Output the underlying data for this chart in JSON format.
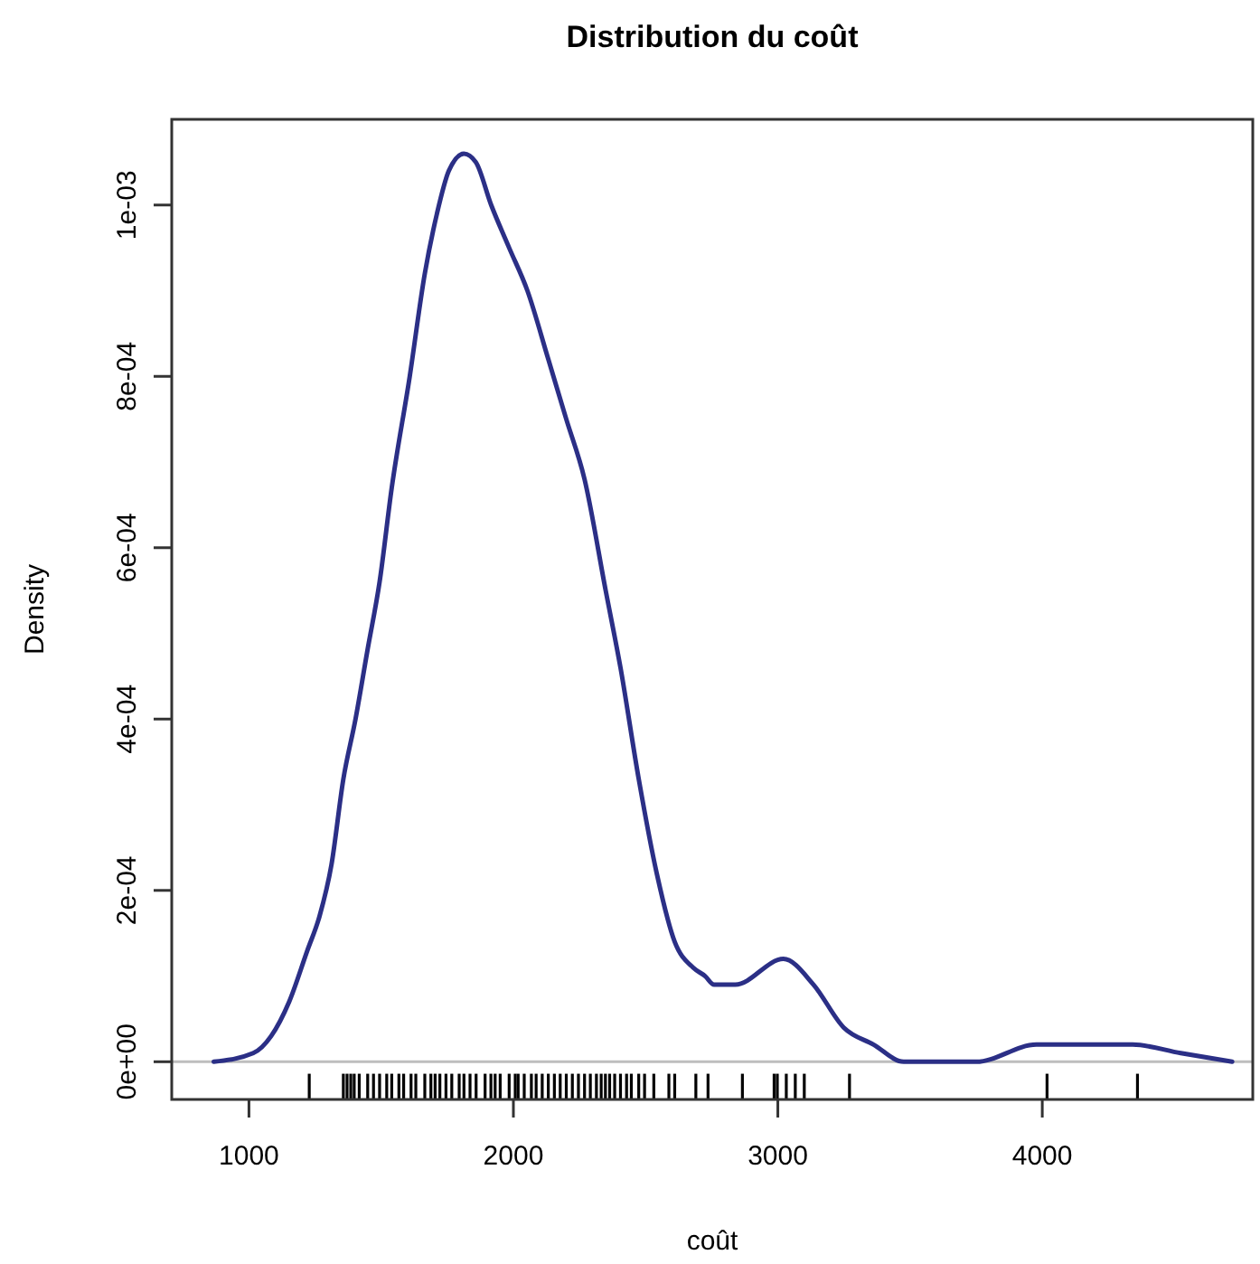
{
  "chart_data": {
    "type": "line",
    "title": "Distribution du coût",
    "xlabel": "coût",
    "ylabel": "Density",
    "xlim": [
      708,
      4796
    ],
    "ylim": [
      -4.4e-05,
      0.0011
    ],
    "xticks": [
      1000,
      2000,
      3000,
      4000
    ],
    "yticks": [
      {
        "value": 0,
        "label": "0e+00"
      },
      {
        "value": 0.0002,
        "label": "2e-04"
      },
      {
        "value": 0.0004,
        "label": "4e-04"
      },
      {
        "value": 0.0006,
        "label": "6e-04"
      },
      {
        "value": 0.0008,
        "label": "8e-04"
      },
      {
        "value": 0.001,
        "label": "1e-03"
      }
    ],
    "grid": false,
    "ref_lines": [
      {
        "axis": "y",
        "value": 0,
        "color": "#bebebe"
      }
    ],
    "series": [
      {
        "color": "#2b2f86",
        "x": [
          867,
          1016,
          1084,
          1152,
          1221,
          1267,
          1312,
          1357,
          1403,
          1448,
          1494,
          1540,
          1608,
          1665,
          1711,
          1756,
          1813,
          1858,
          1916,
          1984,
          2053,
          2132,
          2200,
          2269,
          2349,
          2405,
          2474,
          2542,
          2610,
          2679,
          2725,
          2759,
          2839,
          3021,
          3135,
          3249,
          3362,
          3476,
          3750,
          3978,
          4160,
          4342,
          4524,
          4718
        ],
        "values": [
          0,
          1e-05,
          3e-05,
          7e-05,
          0.00013,
          0.00017,
          0.00023,
          0.00033,
          0.0004,
          0.00048,
          0.00056,
          0.00067,
          0.0008,
          0.00092,
          0.00099,
          0.00104,
          0.00106,
          0.00105,
          0.001,
          0.00095,
          0.0009,
          0.00082,
          0.00075,
          0.00068,
          0.00055,
          0.00046,
          0.00033,
          0.00022,
          0.00014,
          0.00011,
          0.0001,
          9e-05,
          9e-05,
          0.00012,
          9e-05,
          4e-05,
          2e-05,
          0,
          0,
          2e-05,
          2e-05,
          2e-05,
          1e-05,
          0
        ]
      },
      {
        "type": "bar",
        "color": "#000000",
        "x": [
          1228,
          1357,
          1371,
          1385,
          1398,
          1417,
          1449,
          1471,
          1494,
          1521,
          1540,
          1567,
          1585,
          1613,
          1631,
          1665,
          1688,
          1704,
          1722,
          1745,
          1767,
          1795,
          1813,
          1836,
          1859,
          1893,
          1915,
          1931,
          1950,
          1984,
          2007,
          2018,
          2041,
          2068,
          2086,
          2109,
          2132,
          2155,
          2177,
          2200,
          2223,
          2246,
          2269,
          2291,
          2314,
          2332,
          2348,
          2364,
          2383,
          2405,
          2428,
          2446,
          2474,
          2496,
          2531,
          2588,
          2610,
          2690,
          2736,
          2866,
          2986,
          2998,
          3032,
          3066,
          3100,
          3271,
          4018,
          4360
        ],
        "base": [
          -4.4e-05,
          -4.4e-05,
          -4.4e-05,
          -4.4e-05,
          -4.4e-05,
          -4.4e-05,
          -4.4e-05,
          -4.4e-05,
          -4.4e-05,
          -4.4e-05,
          -4.4e-05,
          -4.4e-05,
          -4.4e-05,
          -4.4e-05,
          -4.4e-05,
          -4.4e-05,
          -4.4e-05,
          -4.4e-05,
          -4.4e-05,
          -4.4e-05,
          -4.4e-05,
          -4.4e-05,
          -4.4e-05,
          -4.4e-05,
          -4.4e-05,
          -4.4e-05,
          -4.4e-05,
          -4.4e-05,
          -4.4e-05,
          -4.4e-05,
          -4.4e-05,
          -4.4e-05,
          -4.4e-05,
          -4.4e-05,
          -4.4e-05,
          -4.4e-05,
          -4.4e-05,
          -4.4e-05,
          -4.4e-05,
          -4.4e-05,
          -4.4e-05,
          -4.4e-05,
          -4.4e-05,
          -4.4e-05,
          -4.4e-05,
          -4.4e-05,
          -4.4e-05,
          -4.4e-05,
          -4.4e-05,
          -4.4e-05,
          -4.4e-05,
          -4.4e-05,
          -4.4e-05,
          -4.4e-05,
          -4.4e-05,
          -4.4e-05,
          -4.4e-05,
          -4.4e-05,
          -4.4e-05,
          -4.4e-05,
          -4.4e-05,
          -4.4e-05,
          -4.4e-05,
          -4.4e-05,
          -4.4e-05,
          -4.4e-05,
          -4.4e-05,
          -4.4e-05
        ],
        "values": [
          3e-05,
          3e-05,
          3e-05,
          3e-05,
          3e-05,
          3e-05,
          3e-05,
          3e-05,
          3e-05,
          3e-05,
          3e-05,
          3e-05,
          3e-05,
          3e-05,
          3e-05,
          3e-05,
          3e-05,
          3e-05,
          3e-05,
          3e-05,
          3e-05,
          3e-05,
          3e-05,
          3e-05,
          3e-05,
          3e-05,
          3e-05,
          3e-05,
          3e-05,
          3e-05,
          3e-05,
          3e-05,
          3e-05,
          3e-05,
          3e-05,
          3e-05,
          3e-05,
          3e-05,
          3e-05,
          3e-05,
          3e-05,
          3e-05,
          3e-05,
          3e-05,
          3e-05,
          3e-05,
          3e-05,
          3e-05,
          3e-05,
          3e-05,
          3e-05,
          3e-05,
          3e-05,
          3e-05,
          3e-05,
          3e-05,
          3e-05,
          3e-05,
          3e-05,
          3e-05,
          3e-05,
          3e-05,
          3e-05,
          3e-05,
          3e-05,
          3e-05,
          3e-05,
          3e-05
        ]
      }
    ]
  }
}
